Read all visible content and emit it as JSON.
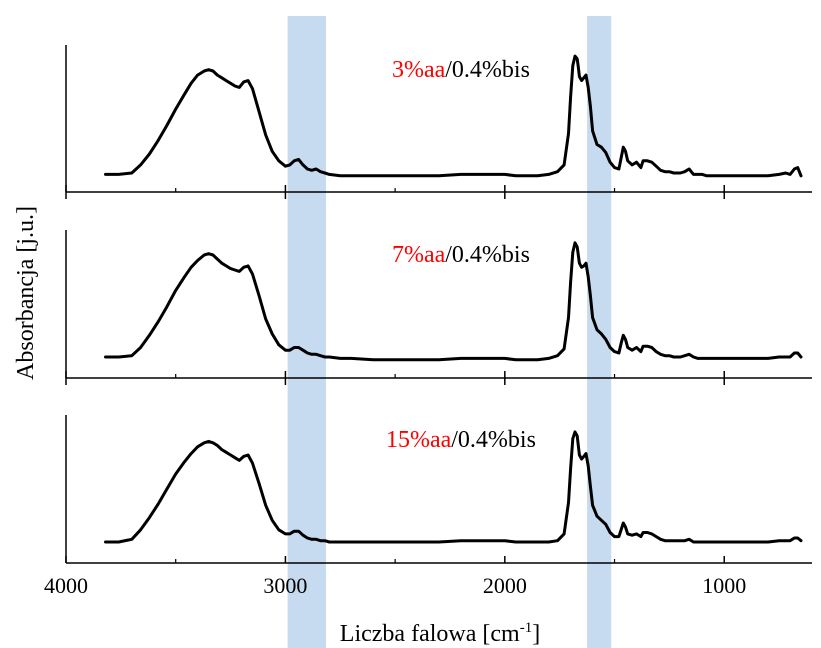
{
  "colors": {
    "line": "#000000",
    "band": "#c6dbef",
    "highlight": "#ff0000",
    "axis": "#000000"
  },
  "chart_data": {
    "type": "line",
    "title": "",
    "xlabel": "Liczba falowa [cm",
    "xlabel_sup": "-1",
    "xlabel_close": "]",
    "ylabel": "Absorbancja [j.u.]",
    "xlim": [
      4000,
      600
    ],
    "x_reversed": true,
    "x_ticks": [
      4000,
      3000,
      2000,
      1000
    ],
    "x_minor_ticks": [
      3500,
      2500,
      1500
    ],
    "y_ticks_shown": false,
    "grid": false,
    "highlight_bands": [
      {
        "from": 2990,
        "to": 2815
      },
      {
        "from": 1625,
        "to": 1515
      }
    ],
    "panels": [
      {
        "label_red": "3%aa",
        "label_black": "/0.4%bis",
        "ylim": [
          0,
          1
        ],
        "series": [
          {
            "x": [
              3820,
              3760,
              3700,
              3660,
              3620,
              3580,
              3540,
              3500,
              3460,
              3430,
              3400,
              3370,
              3350,
              3330,
              3310,
              3290,
              3270,
              3250,
              3230,
              3210,
              3190,
              3170,
              3150,
              3120,
              3090,
              3060,
              3030,
              3000,
              2980,
              2960,
              2940,
              2920,
              2900,
              2880,
              2860,
              2840,
              2820,
              2800,
              2750,
              2700,
              2600,
              2500,
              2400,
              2300,
              2200,
              2100,
              2000,
              1950,
              1900,
              1850,
              1800,
              1760,
              1730,
              1710,
              1700,
              1690,
              1680,
              1670,
              1665,
              1660,
              1650,
              1640,
              1630,
              1620,
              1610,
              1600,
              1580,
              1560,
              1540,
              1520,
              1500,
              1480,
              1470,
              1460,
              1450,
              1440,
              1420,
              1400,
              1380,
              1370,
              1350,
              1330,
              1310,
              1290,
              1270,
              1250,
              1230,
              1200,
              1180,
              1160,
              1140,
              1120,
              1100,
              1080,
              1050,
              1000,
              950,
              900,
              850,
              800,
              750,
              720,
              700,
              680,
              665,
              650
            ],
            "y": [
              0.1,
              0.1,
              0.11,
              0.17,
              0.25,
              0.35,
              0.46,
              0.58,
              0.69,
              0.77,
              0.83,
              0.86,
              0.87,
              0.86,
              0.83,
              0.81,
              0.79,
              0.77,
              0.75,
              0.74,
              0.78,
              0.79,
              0.73,
              0.56,
              0.39,
              0.27,
              0.2,
              0.16,
              0.17,
              0.2,
              0.21,
              0.17,
              0.14,
              0.13,
              0.14,
              0.12,
              0.11,
              0.1,
              0.09,
              0.09,
              0.09,
              0.09,
              0.09,
              0.09,
              0.1,
              0.1,
              0.1,
              0.09,
              0.09,
              0.09,
              0.1,
              0.12,
              0.17,
              0.4,
              0.67,
              0.9,
              0.97,
              0.95,
              0.89,
              0.82,
              0.79,
              0.81,
              0.83,
              0.74,
              0.6,
              0.42,
              0.32,
              0.3,
              0.26,
              0.19,
              0.15,
              0.14,
              0.22,
              0.3,
              0.27,
              0.2,
              0.17,
              0.19,
              0.15,
              0.2,
              0.2,
              0.19,
              0.16,
              0.13,
              0.12,
              0.12,
              0.11,
              0.11,
              0.12,
              0.14,
              0.1,
              0.1,
              0.1,
              0.09,
              0.09,
              0.09,
              0.09,
              0.09,
              0.09,
              0.09,
              0.1,
              0.11,
              0.1,
              0.14,
              0.15,
              0.09
            ]
          }
        ]
      },
      {
        "label_red": "7%aa",
        "label_black": "/0.4%bis",
        "ylim": [
          0,
          1
        ],
        "series": [
          {
            "x": [
              3820,
              3760,
              3700,
              3660,
              3620,
              3580,
              3540,
              3500,
              3460,
              3430,
              3400,
              3370,
              3350,
              3330,
              3310,
              3290,
              3270,
              3250,
              3230,
              3210,
              3190,
              3170,
              3150,
              3120,
              3090,
              3060,
              3030,
              3000,
              2980,
              2960,
              2940,
              2920,
              2900,
              2880,
              2860,
              2840,
              2820,
              2800,
              2750,
              2700,
              2600,
              2500,
              2400,
              2300,
              2200,
              2100,
              2000,
              1950,
              1900,
              1850,
              1800,
              1760,
              1730,
              1710,
              1700,
              1690,
              1680,
              1670,
              1665,
              1660,
              1650,
              1640,
              1630,
              1620,
              1610,
              1600,
              1580,
              1560,
              1540,
              1520,
              1500,
              1480,
              1470,
              1460,
              1450,
              1440,
              1420,
              1400,
              1380,
              1370,
              1350,
              1330,
              1310,
              1290,
              1270,
              1250,
              1230,
              1200,
              1180,
              1160,
              1140,
              1120,
              1100,
              1080,
              1050,
              1000,
              950,
              900,
              850,
              800,
              750,
              720,
              700,
              680,
              665,
              650
            ],
            "y": [
              0.11,
              0.11,
              0.12,
              0.18,
              0.27,
              0.37,
              0.48,
              0.6,
              0.7,
              0.77,
              0.82,
              0.86,
              0.87,
              0.86,
              0.83,
              0.8,
              0.78,
              0.76,
              0.75,
              0.74,
              0.77,
              0.78,
              0.72,
              0.56,
              0.39,
              0.28,
              0.2,
              0.16,
              0.16,
              0.18,
              0.18,
              0.16,
              0.14,
              0.13,
              0.13,
              0.12,
              0.11,
              0.11,
              0.1,
              0.1,
              0.09,
              0.09,
              0.09,
              0.09,
              0.1,
              0.1,
              0.1,
              0.09,
              0.09,
              0.09,
              0.1,
              0.12,
              0.17,
              0.4,
              0.66,
              0.88,
              0.95,
              0.92,
              0.86,
              0.8,
              0.77,
              0.78,
              0.8,
              0.7,
              0.56,
              0.4,
              0.31,
              0.28,
              0.24,
              0.18,
              0.15,
              0.14,
              0.21,
              0.27,
              0.24,
              0.18,
              0.16,
              0.18,
              0.15,
              0.19,
              0.19,
              0.18,
              0.15,
              0.13,
              0.12,
              0.12,
              0.11,
              0.11,
              0.12,
              0.13,
              0.11,
              0.1,
              0.1,
              0.1,
              0.1,
              0.1,
              0.1,
              0.1,
              0.1,
              0.1,
              0.11,
              0.11,
              0.11,
              0.14,
              0.14,
              0.11
            ]
          }
        ]
      },
      {
        "label_red": "15%aa",
        "label_black": "/0.4%bis",
        "ylim": [
          0,
          1
        ],
        "series": [
          {
            "x": [
              3820,
              3760,
              3700,
              3660,
              3620,
              3580,
              3540,
              3500,
              3460,
              3430,
              3400,
              3370,
              3350,
              3330,
              3310,
              3290,
              3270,
              3250,
              3230,
              3210,
              3190,
              3170,
              3150,
              3120,
              3090,
              3060,
              3030,
              3000,
              2980,
              2960,
              2940,
              2920,
              2900,
              2880,
              2860,
              2840,
              2820,
              2800,
              2750,
              2700,
              2600,
              2500,
              2400,
              2300,
              2200,
              2100,
              2000,
              1950,
              1900,
              1850,
              1800,
              1760,
              1730,
              1710,
              1700,
              1690,
              1680,
              1670,
              1665,
              1660,
              1650,
              1640,
              1630,
              1620,
              1610,
              1600,
              1580,
              1560,
              1540,
              1520,
              1500,
              1480,
              1470,
              1460,
              1450,
              1440,
              1420,
              1400,
              1380,
              1370,
              1350,
              1330,
              1310,
              1290,
              1270,
              1250,
              1230,
              1200,
              1180,
              1160,
              1140,
              1120,
              1100,
              1080,
              1050,
              1000,
              950,
              900,
              850,
              800,
              750,
              720,
              700,
              680,
              665,
              650
            ],
            "y": [
              0.11,
              0.11,
              0.13,
              0.2,
              0.29,
              0.39,
              0.5,
              0.61,
              0.7,
              0.76,
              0.81,
              0.84,
              0.85,
              0.84,
              0.82,
              0.79,
              0.77,
              0.75,
              0.73,
              0.71,
              0.74,
              0.75,
              0.69,
              0.54,
              0.38,
              0.27,
              0.2,
              0.17,
              0.17,
              0.19,
              0.19,
              0.16,
              0.14,
              0.13,
              0.13,
              0.12,
              0.12,
              0.11,
              0.11,
              0.11,
              0.11,
              0.11,
              0.11,
              0.11,
              0.12,
              0.12,
              0.12,
              0.11,
              0.11,
              0.11,
              0.11,
              0.12,
              0.17,
              0.4,
              0.65,
              0.87,
              0.92,
              0.89,
              0.82,
              0.75,
              0.72,
              0.74,
              0.76,
              0.67,
              0.52,
              0.38,
              0.3,
              0.27,
              0.24,
              0.18,
              0.15,
              0.15,
              0.2,
              0.25,
              0.22,
              0.17,
              0.16,
              0.17,
              0.15,
              0.18,
              0.18,
              0.17,
              0.15,
              0.13,
              0.12,
              0.12,
              0.12,
              0.12,
              0.12,
              0.13,
              0.11,
              0.11,
              0.11,
              0.11,
              0.11,
              0.11,
              0.11,
              0.11,
              0.11,
              0.11,
              0.12,
              0.12,
              0.12,
              0.14,
              0.14,
              0.12
            ]
          }
        ]
      }
    ]
  }
}
